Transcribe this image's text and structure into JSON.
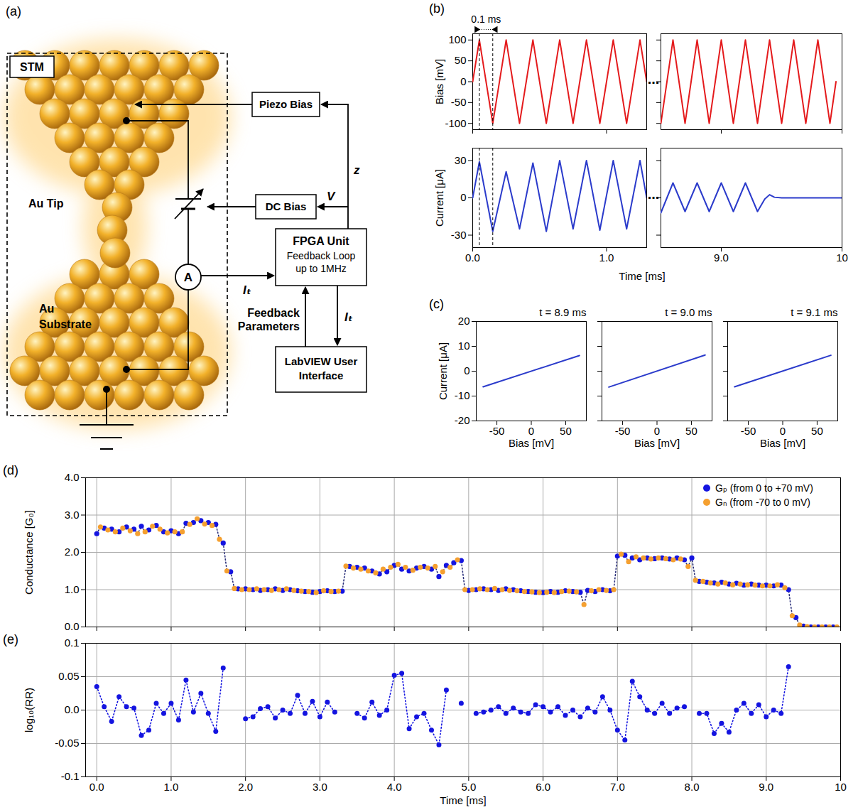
{
  "diagram": {
    "label": "(a)",
    "stm_label": "STM",
    "tip_label": "Au Tip",
    "substrate_label": "Au Substrate",
    "ammeter_label": "A",
    "boxes": {
      "piezo": "Piezo Bias",
      "dc": "DC Bias",
      "fpga_title": "FPGA Unit",
      "fpga_text": "Feedback Loop up to 1MHz",
      "ui": "LabVIEW User Interface"
    },
    "signals": {
      "z": "z",
      "V": "V",
      "I_t": "Iₜ",
      "feedback": "Feedback Parameters"
    }
  },
  "chart_data": [
    {
      "type": "line",
      "panel_label": "(b)",
      "y_label": "Bias [mV]",
      "x": [
        0,
        0.05,
        0.15,
        0.25,
        0.35,
        0.45,
        0.55,
        0.65,
        0.75,
        0.85,
        0.95,
        1.05,
        1.15,
        1.25,
        1.3
      ],
      "values": [
        0,
        100,
        -100,
        100,
        -100,
        100,
        -100,
        100,
        -100,
        100,
        -100,
        100,
        -100,
        100,
        0
      ],
      "color": "#e41a1c",
      "xlim": [
        0,
        1.3
      ],
      "xticks": [
        {
          "value": 0,
          "label": "0.0"
        },
        {
          "value": 1,
          "label": "1.0"
        }
      ],
      "ylim": [
        -115,
        115
      ],
      "yticks": [
        -100,
        -50,
        0,
        50,
        100
      ],
      "tick_labels": "y",
      "annotation": {
        "text": "0.1 ms",
        "x": [
          0.05,
          0.15
        ]
      }
    },
    {
      "type": "line",
      "break_label": "...",
      "x": [
        8.5,
        8.6,
        8.7,
        8.8,
        8.9,
        9.0,
        9.1,
        9.2,
        9.3,
        9.4,
        9.5,
        9.6,
        9.7,
        9.8,
        9.9,
        9.95
      ],
      "values": [
        -100,
        100,
        -100,
        100,
        -100,
        100,
        -100,
        100,
        -100,
        100,
        -100,
        100,
        -100,
        100,
        -100,
        0
      ],
      "color": "#e41a1c",
      "xlim": [
        8.5,
        10
      ],
      "xticks": [
        {
          "value": 9,
          "label": "9.0"
        },
        10
      ],
      "ylim": [
        -115,
        115
      ],
      "yticks": [
        -100,
        -50,
        0,
        50,
        100
      ],
      "tick_labels": false
    },
    {
      "type": "line",
      "y_label": "Current [μA]",
      "x_label": "Time [ms]",
      "x": [
        0,
        0.05,
        0.15,
        0.25,
        0.35,
        0.45,
        0.55,
        0.65,
        0.75,
        0.85,
        0.95,
        1.05,
        1.15,
        1.25,
        1.3
      ],
      "values": [
        0,
        29,
        -27,
        21,
        -25,
        28,
        -27,
        30,
        -25,
        30,
        -26,
        30,
        -25,
        30,
        0
      ],
      "color": "#2b3bcb",
      "xlim": [
        0,
        1.3
      ],
      "xticks": [
        {
          "value": 0,
          "label": "0.0"
        },
        {
          "value": 1,
          "label": "1.0"
        }
      ],
      "ylim": [
        -40,
        40
      ],
      "yticks": [
        -30,
        0,
        30
      ]
    },
    {
      "type": "line",
      "break_label": "...",
      "x": [
        8.5,
        8.6,
        8.7,
        8.8,
        8.9,
        9.0,
        9.1,
        9.2,
        9.3,
        9.36,
        9.4,
        9.44,
        9.5,
        10
      ],
      "values": [
        -12,
        12,
        -11,
        12,
        -11,
        12,
        -11,
        12,
        -11,
        -1,
        2.5,
        0.5,
        0,
        0
      ],
      "color": "#2b3bcb",
      "xlim": [
        8.5,
        10
      ],
      "xticks": [
        {
          "value": 9,
          "label": "9.0"
        },
        10
      ],
      "ylim": [
        -40,
        40
      ],
      "yticks": [
        -30,
        0,
        30
      ],
      "tick_labels": "x"
    },
    {
      "type": "line",
      "panel_label": "(c)",
      "title": "t = 8.9 ms",
      "x_label": "Bias [mV]",
      "y_label": "Current [μA]",
      "x": [
        -70,
        70
      ],
      "values": [
        -6.3,
        6.3
      ],
      "color": "#2b3bcb",
      "xlim": [
        -80,
        80
      ],
      "xticks": [
        -50,
        0,
        50
      ],
      "ylim": [
        -20,
        20
      ],
      "yticks": [
        -20,
        -10,
        0,
        10,
        20
      ]
    },
    {
      "type": "line",
      "title": "t = 9.0 ms",
      "x_label": "Bias [mV]",
      "x": [
        -70,
        70
      ],
      "values": [
        -6.4,
        6.5
      ],
      "color": "#2b3bcb",
      "xlim": [
        -80,
        80
      ],
      "xticks": [
        -50,
        0,
        50
      ],
      "ylim": [
        -20,
        20
      ],
      "yticks": [
        -20,
        -10,
        0,
        10,
        20
      ],
      "tick_labels": "x"
    },
    {
      "type": "line",
      "title": "t = 9.1 ms",
      "x_label": "Bias [mV]",
      "x": [
        -70,
        70
      ],
      "values": [
        -6.3,
        6.4
      ],
      "color": "#2b3bcb",
      "xlim": [
        -80,
        80
      ],
      "xticks": [
        -50,
        0,
        50
      ],
      "ylim": [
        -20,
        20
      ],
      "yticks": [
        -20,
        -10,
        0,
        10,
        20
      ],
      "tick_labels": "x"
    },
    {
      "type": "scatter",
      "panel_label": "(d)",
      "y_label": "Conductance [G₀]",
      "marker": "circle",
      "line_style": "dotted",
      "grid": true,
      "legend": "top-right",
      "tick_labels": "y",
      "xlim": [
        -0.15,
        10
      ],
      "xticks": [
        {
          "value": 0,
          "label": "0.0"
        },
        {
          "value": 1,
          "label": "1.0"
        },
        {
          "value": 2,
          "label": "2.0"
        },
        {
          "value": 3,
          "label": "3.0"
        },
        {
          "value": 4,
          "label": "4.0"
        },
        {
          "value": 5,
          "label": "5.0"
        },
        {
          "value": 6,
          "label": "6.0"
        },
        {
          "value": 7,
          "label": "7.0"
        },
        {
          "value": 8,
          "label": "8.0"
        },
        {
          "value": 9,
          "label": "9.0"
        },
        10
      ],
      "ylim": [
        0,
        4
      ],
      "yticks": [
        {
          "value": 0,
          "label": "0.0"
        },
        {
          "value": 1,
          "label": "1.0"
        },
        {
          "value": 2,
          "label": "2.0"
        },
        {
          "value": 3,
          "label": "3.0"
        },
        {
          "value": 4,
          "label": "4.0"
        }
      ],
      "series": [
        {
          "name": "Gₚ (from 0 to +70 mV)",
          "color": "#1414e0",
          "x": [
            0,
            0.1,
            0.2,
            0.3,
            0.4,
            0.5,
            0.6,
            0.7,
            0.8,
            0.9,
            1,
            1.1,
            1.2,
            1.3,
            1.4,
            1.5,
            1.6,
            1.7,
            1.8,
            1.9,
            2,
            2.1,
            2.2,
            2.3,
            2.4,
            2.5,
            2.6,
            2.7,
            2.8,
            2.9,
            3,
            3.1,
            3.2,
            3.3,
            3.4,
            3.5,
            3.6,
            3.7,
            3.8,
            3.9,
            4,
            4.1,
            4.2,
            4.3,
            4.4,
            4.5,
            4.6,
            4.7,
            4.8,
            4.9,
            5,
            5.1,
            5.2,
            5.3,
            5.4,
            5.5,
            5.6,
            5.7,
            5.8,
            5.9,
            6,
            6.1,
            6.2,
            6.3,
            6.4,
            6.5,
            6.6,
            6.7,
            6.8,
            6.9,
            7,
            7.1,
            7.2,
            7.3,
            7.4,
            7.5,
            7.6,
            7.7,
            7.8,
            7.9,
            8,
            8.1,
            8.2,
            8.3,
            8.4,
            8.5,
            8.6,
            8.7,
            8.8,
            8.9,
            9,
            9.1,
            9.2,
            9.3,
            9.4,
            9.5,
            9.6,
            9.7,
            9.8,
            9.9
          ],
          "values": [
            2.5,
            2.65,
            2.62,
            2.55,
            2.68,
            2.62,
            2.7,
            2.6,
            2.72,
            2.55,
            2.58,
            2.5,
            2.78,
            2.8,
            2.85,
            2.8,
            2.75,
            2.25,
            1.48,
            1.02,
            1.02,
            1,
            0.98,
            1,
            1.02,
            0.98,
            1,
            0.97,
            0.95,
            0.93,
            0.95,
            0.97,
            0.95,
            0.96,
            1.62,
            1.6,
            1.58,
            1.5,
            1.42,
            1.48,
            1.65,
            1.55,
            1.5,
            1.58,
            1.62,
            1.55,
            1.35,
            1.65,
            1.72,
            1.78,
            0.98,
            1,
            1.02,
            1,
            0.98,
            1.02,
            1,
            0.97,
            0.95,
            0.93,
            0.92,
            0.95,
            0.93,
            0.97,
            0.95,
            0.93,
            0.98,
            0.95,
            1,
            0.97,
            1.9,
            1.92,
            1.85,
            1.8,
            1.85,
            1.83,
            1.85,
            1.82,
            1.85,
            1.8,
            1.85,
            1.22,
            1.2,
            1.18,
            1.2,
            1.15,
            1.17,
            1.12,
            1.15,
            1.12,
            1.12,
            1.1,
            1.12,
            1,
            0.25,
            0.02,
            0,
            0,
            0,
            0
          ]
        },
        {
          "name": "Gₙ (from -70 to 0 mV)",
          "color": "#f5a030",
          "x": [
            0.05,
            0.15,
            0.25,
            0.35,
            0.45,
            0.55,
            0.65,
            0.75,
            0.85,
            0.95,
            1.05,
            1.15,
            1.25,
            1.35,
            1.45,
            1.55,
            1.65,
            1.75,
            1.85,
            1.95,
            2.05,
            2.15,
            2.25,
            2.35,
            2.45,
            2.55,
            2.65,
            2.75,
            2.85,
            2.95,
            3.05,
            3.15,
            3.25,
            3.35,
            3.45,
            3.55,
            3.65,
            3.75,
            3.85,
            3.95,
            4.05,
            4.15,
            4.25,
            4.35,
            4.45,
            4.55,
            4.65,
            4.75,
            4.85,
            4.95,
            5.05,
            5.15,
            5.25,
            5.35,
            5.45,
            5.55,
            5.65,
            5.75,
            5.85,
            5.95,
            6.05,
            6.15,
            6.25,
            6.35,
            6.45,
            6.55,
            6.65,
            6.75,
            6.85,
            6.95,
            7.05,
            7.15,
            7.25,
            7.35,
            7.45,
            7.55,
            7.65,
            7.75,
            7.85,
            7.95,
            8.05,
            8.15,
            8.25,
            8.35,
            8.45,
            8.55,
            8.65,
            8.75,
            8.85,
            8.95,
            9.05,
            9.15,
            9.25,
            9.35,
            9.45,
            9.55,
            9.65,
            9.75,
            9.85,
            9.95
          ],
          "values": [
            2.68,
            2.6,
            2.55,
            2.65,
            2.58,
            2.5,
            2.55,
            2.7,
            2.62,
            2.52,
            2.55,
            2.55,
            2.75,
            2.9,
            2.76,
            2.72,
            2.35,
            1.5,
            1.03,
            1,
            1,
            1.02,
            1,
            0.98,
            1,
            1.02,
            0.98,
            0.96,
            0.95,
            0.92,
            0.97,
            0.95,
            0.96,
            1.63,
            1.58,
            1.55,
            1.5,
            1.45,
            1.55,
            1.6,
            1.68,
            1.6,
            1.52,
            1.6,
            1.58,
            1.62,
            1.48,
            1.6,
            1.8,
            1,
            1,
            1.02,
            1,
            1.03,
            1,
            0.98,
            0.97,
            0.95,
            0.94,
            0.92,
            0.93,
            0.92,
            0.95,
            0.96,
            0.94,
            0.6,
            0.97,
            1,
            0.98,
            1,
            1.95,
            1.75,
            1.88,
            1.85,
            1.82,
            1.85,
            1.83,
            1.8,
            1.82,
            1.62,
            1.25,
            1.22,
            1.18,
            1.15,
            1.18,
            1.13,
            1.15,
            1.13,
            1.12,
            1.1,
            1.1,
            1.13,
            1.05,
            0.3,
            0.05,
            0.01,
            0,
            0,
            0,
            0
          ]
        }
      ]
    },
    {
      "type": "line",
      "panel_label": "(e)",
      "y_label": "log₁₀(RR)",
      "x_label": "Time [ms]",
      "marker": "circle",
      "line_style": "dotted",
      "grid": true,
      "color": "#1414e0",
      "xlim": [
        -0.15,
        10
      ],
      "xticks": [
        {
          "value": 0,
          "label": "0.0"
        },
        {
          "value": 1,
          "label": "1.0"
        },
        {
          "value": 2,
          "label": "2.0"
        },
        {
          "value": 3,
          "label": "3.0"
        },
        {
          "value": 4,
          "label": "4.0"
        },
        {
          "value": 5,
          "label": "5.0"
        },
        {
          "value": 6,
          "label": "6.0"
        },
        {
          "value": 7,
          "label": "7.0"
        },
        {
          "value": 8,
          "label": "8.0"
        },
        {
          "value": 9,
          "label": "9.0"
        },
        10
      ],
      "ylim": [
        -0.1,
        0.1
      ],
      "yticks": [
        -0.1,
        -0.05,
        {
          "value": 0,
          "label": "0.0"
        },
        0.05,
        0.1
      ],
      "x": [
        0,
        0.1,
        0.2,
        0.3,
        0.4,
        0.5,
        0.6,
        0.7,
        0.8,
        0.9,
        1,
        1.1,
        1.2,
        1.3,
        1.4,
        1.5,
        1.6,
        1.7,
        1.8,
        1.9,
        2,
        2.1,
        2.2,
        2.3,
        2.4,
        2.5,
        2.6,
        2.7,
        2.8,
        2.9,
        3,
        3.1,
        3.2,
        3.3,
        3.4,
        3.5,
        3.6,
        3.7,
        3.8,
        3.9,
        4,
        4.1,
        4.2,
        4.3,
        4.4,
        4.5,
        4.6,
        4.7,
        4.8,
        4.9,
        5,
        5.1,
        5.2,
        5.3,
        5.4,
        5.5,
        5.6,
        5.7,
        5.8,
        5.9,
        6,
        6.1,
        6.2,
        6.3,
        6.4,
        6.5,
        6.6,
        6.7,
        6.8,
        6.9,
        7,
        7.1,
        7.2,
        7.3,
        7.4,
        7.5,
        7.6,
        7.7,
        7.8,
        7.9,
        8,
        8.1,
        8.2,
        8.3,
        8.4,
        8.5,
        8.6,
        8.7,
        8.8,
        8.9,
        9,
        9.1,
        9.2,
        9.3
      ],
      "values": [
        0.035,
        0.005,
        -0.017,
        0.02,
        0.005,
        0.003,
        -0.038,
        -0.03,
        0.01,
        -0.005,
        0.01,
        -0.015,
        0.045,
        -0.003,
        0.025,
        -0.005,
        -0.032,
        0.063,
        null,
        null,
        -0.013,
        -0.01,
        0.002,
        0.005,
        -0.012,
        0,
        -0.005,
        0.022,
        -0.005,
        0.013,
        -0.01,
        0.012,
        -0.003,
        null,
        null,
        -0.005,
        -0.012,
        0.012,
        -0.008,
        0,
        0.052,
        0.055,
        -0.028,
        -0.01,
        -0.005,
        -0.03,
        -0.052,
        0.03,
        null,
        0.01,
        null,
        -0.005,
        -0.003,
        0,
        0.005,
        -0.005,
        0.003,
        -0.003,
        -0.005,
        0.008,
        0.005,
        -0.003,
        0.005,
        -0.008,
        0,
        -0.01,
        0.003,
        -0.003,
        0.02,
        0,
        -0.03,
        -0.045,
        0.043,
        0.02,
        0,
        -0.005,
        0.01,
        -0.005,
        0.003,
        0.005,
        null,
        -0.005,
        -0.005,
        -0.035,
        -0.02,
        -0.033,
        0,
        0.01,
        -0.005,
        0.008,
        -0.01,
        0,
        -0.005,
        0.065
      ]
    }
  ]
}
